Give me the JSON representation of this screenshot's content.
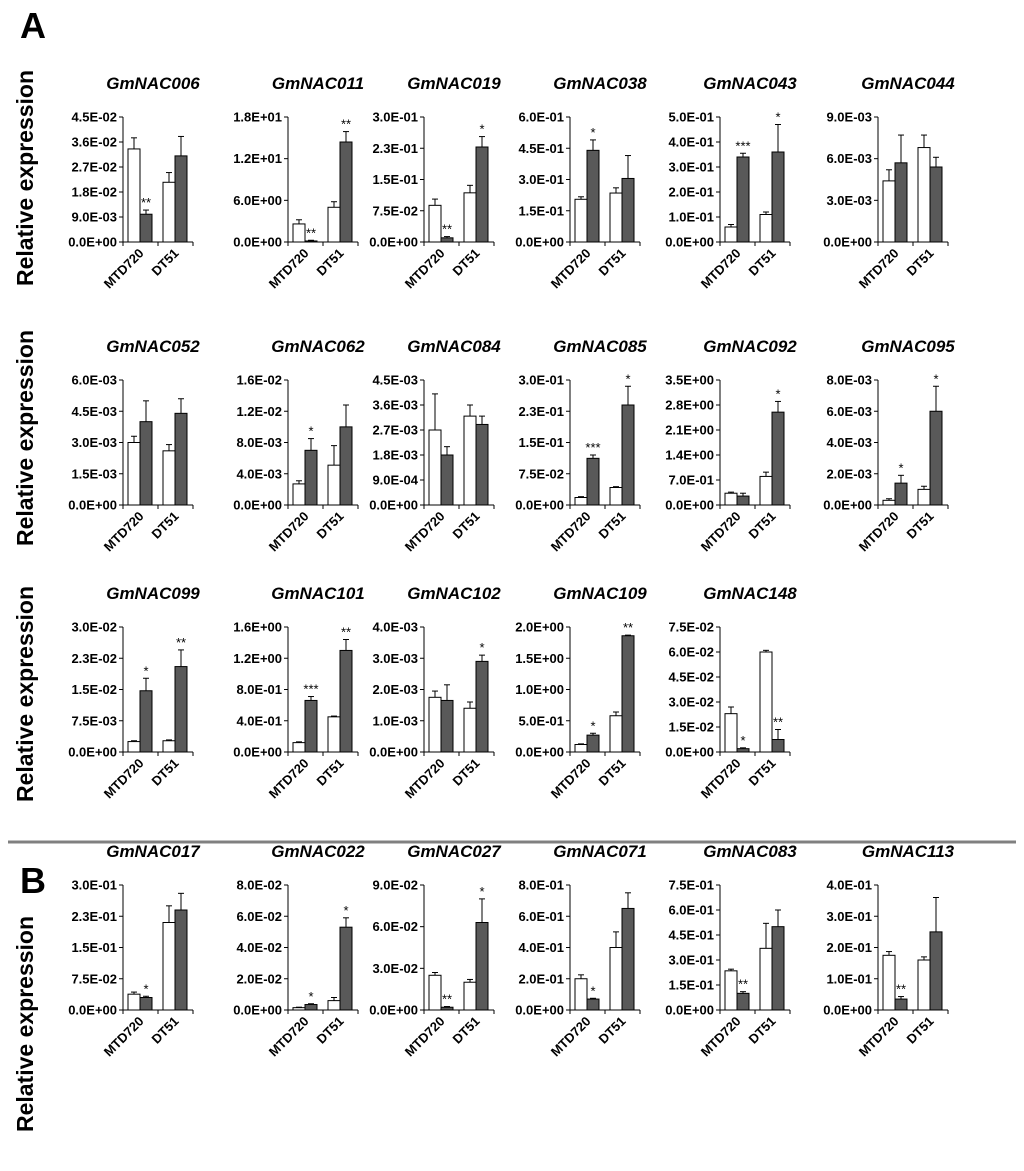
{
  "panels": [
    {
      "label": "A",
      "ylabel": "Relative expression"
    },
    {
      "label": "B",
      "ylabel": "Relative expression"
    }
  ],
  "colors": {
    "open": "#ffffff",
    "filled": "#595959",
    "stroke": "#000000",
    "divider": "#808080"
  },
  "chart_data": [
    {
      "type": "bar",
      "panel": "A",
      "title": "GmNAC006",
      "categories": [
        "MTD720",
        "DT51"
      ],
      "ticks": [
        "0.0E+00",
        "9.0E-03",
        "1.8E-02",
        "2.7E-02",
        "3.6E-02",
        "4.5E-02"
      ],
      "ylim": [
        0,
        0.045
      ],
      "series": [
        {
          "name": "open",
          "values": [
            0.0335,
            0.0215
          ],
          "errors": [
            0.004,
            0.0035
          ],
          "sig": [
            "",
            ""
          ]
        },
        {
          "name": "filled",
          "values": [
            0.01,
            0.031
          ],
          "errors": [
            0.0015,
            0.007
          ],
          "sig": [
            "**",
            ""
          ]
        }
      ]
    },
    {
      "type": "bar",
      "panel": "A",
      "title": "GmNAC011",
      "categories": [
        "MTD720",
        "DT51"
      ],
      "ticks": [
        "0.0E+00",
        "6.0E+00",
        "1.2E+01",
        "1.8E+01"
      ],
      "ylim": [
        0,
        18
      ],
      "series": [
        {
          "name": "open",
          "values": [
            2.6,
            5.0
          ],
          "errors": [
            0.6,
            0.8
          ],
          "sig": [
            "",
            ""
          ]
        },
        {
          "name": "filled",
          "values": [
            0.15,
            14.4
          ],
          "errors": [
            0.1,
            1.5
          ],
          "sig": [
            "**",
            "**"
          ]
        }
      ]
    },
    {
      "type": "bar",
      "panel": "A",
      "title": "GmNAC019",
      "categories": [
        "MTD720",
        "DT51"
      ],
      "ticks": [
        "0.0E+00",
        "7.5E-02",
        "1.5E-01",
        "2.3E-01",
        "3.0E-01"
      ],
      "ylim": [
        0,
        0.3
      ],
      "series": [
        {
          "name": "open",
          "values": [
            0.088,
            0.118
          ],
          "errors": [
            0.015,
            0.018
          ],
          "sig": [
            "",
            ""
          ]
        },
        {
          "name": "filled",
          "values": [
            0.01,
            0.228
          ],
          "errors": [
            0.003,
            0.025
          ],
          "sig": [
            "**",
            "*"
          ]
        }
      ]
    },
    {
      "type": "bar",
      "panel": "A",
      "title": "GmNAC038",
      "categories": [
        "MTD720",
        "DT51"
      ],
      "ticks": [
        "0.0E+00",
        "1.5E-01",
        "3.0E-01",
        "4.5E-01",
        "6.0E-01"
      ],
      "ylim": [
        0,
        0.6
      ],
      "series": [
        {
          "name": "open",
          "values": [
            0.205,
            0.235
          ],
          "errors": [
            0.012,
            0.025
          ],
          "sig": [
            "",
            ""
          ]
        },
        {
          "name": "filled",
          "values": [
            0.44,
            0.305
          ],
          "errors": [
            0.05,
            0.11
          ],
          "sig": [
            "*",
            ""
          ]
        }
      ]
    },
    {
      "type": "bar",
      "panel": "A",
      "title": "GmNAC043",
      "categories": [
        "MTD720",
        "DT51"
      ],
      "ticks": [
        "0.0E+00",
        "1.0E-01",
        "2.0E-01",
        "3.0E-01",
        "4.0E-01",
        "5.0E-01"
      ],
      "ylim": [
        0,
        0.5
      ],
      "series": [
        {
          "name": "open",
          "values": [
            0.06,
            0.11
          ],
          "errors": [
            0.01,
            0.01
          ],
          "sig": [
            "",
            ""
          ]
        },
        {
          "name": "filled",
          "values": [
            0.34,
            0.36
          ],
          "errors": [
            0.015,
            0.11
          ],
          "sig": [
            "***",
            "*"
          ]
        }
      ]
    },
    {
      "type": "bar",
      "panel": "A",
      "title": "GmNAC044",
      "categories": [
        "MTD720",
        "DT51"
      ],
      "ticks": [
        "0.0E+00",
        "3.0E-03",
        "6.0E-03",
        "9.0E-03"
      ],
      "ylim": [
        0,
        0.009
      ],
      "series": [
        {
          "name": "open",
          "values": [
            0.0044,
            0.0068
          ],
          "errors": [
            0.0008,
            0.0009
          ],
          "sig": [
            "",
            ""
          ]
        },
        {
          "name": "filled",
          "values": [
            0.0057,
            0.0054
          ],
          "errors": [
            0.002,
            0.0007
          ],
          "sig": [
            "",
            ""
          ]
        }
      ]
    },
    {
      "type": "bar",
      "panel": "A",
      "title": "GmNAC052",
      "categories": [
        "MTD720",
        "DT51"
      ],
      "ticks": [
        "0.0E+00",
        "1.5E-03",
        "3.0E-03",
        "4.5E-03",
        "6.0E-03"
      ],
      "ylim": [
        0,
        0.006
      ],
      "series": [
        {
          "name": "open",
          "values": [
            0.003,
            0.0026
          ],
          "errors": [
            0.0003,
            0.0003
          ],
          "sig": [
            "",
            ""
          ]
        },
        {
          "name": "filled",
          "values": [
            0.004,
            0.0044
          ],
          "errors": [
            0.001,
            0.0007
          ],
          "sig": [
            "",
            ""
          ]
        }
      ]
    },
    {
      "type": "bar",
      "panel": "A",
      "title": "GmNAC062",
      "categories": [
        "MTD720",
        "DT51"
      ],
      "ticks": [
        "0.0E+00",
        "4.0E-03",
        "8.0E-03",
        "1.2E-02",
        "1.6E-02"
      ],
      "ylim": [
        0,
        0.016
      ],
      "series": [
        {
          "name": "open",
          "values": [
            0.0027,
            0.0051
          ],
          "errors": [
            0.0004,
            0.0025
          ],
          "sig": [
            "",
            ""
          ]
        },
        {
          "name": "filled",
          "values": [
            0.007,
            0.01
          ],
          "errors": [
            0.0015,
            0.0028
          ],
          "sig": [
            "*",
            ""
          ]
        }
      ]
    },
    {
      "type": "bar",
      "panel": "A",
      "title": "GmNAC084",
      "categories": [
        "MTD720",
        "DT51"
      ],
      "ticks": [
        "0.0E+00",
        "9.0E-04",
        "1.8E-03",
        "2.7E-03",
        "3.6E-03",
        "4.5E-03"
      ],
      "ylim": [
        0,
        0.0045
      ],
      "series": [
        {
          "name": "open",
          "values": [
            0.0027,
            0.0032
          ],
          "errors": [
            0.0013,
            0.0004
          ],
          "sig": [
            "",
            ""
          ]
        },
        {
          "name": "filled",
          "values": [
            0.0018,
            0.0029
          ],
          "errors": [
            0.0003,
            0.0003
          ],
          "sig": [
            "",
            ""
          ]
        }
      ]
    },
    {
      "type": "bar",
      "panel": "A",
      "title": "GmNAC085",
      "categories": [
        "MTD720",
        "DT51"
      ],
      "ticks": [
        "0.0E+00",
        "7.5E-02",
        "1.5E-01",
        "2.3E-01",
        "3.0E-01"
      ],
      "ylim": [
        0,
        0.3
      ],
      "series": [
        {
          "name": "open",
          "values": [
            0.018,
            0.042
          ],
          "errors": [
            0.002,
            0.002
          ],
          "sig": [
            "",
            ""
          ]
        },
        {
          "name": "filled",
          "values": [
            0.112,
            0.24
          ],
          "errors": [
            0.008,
            0.045
          ],
          "sig": [
            "***",
            "*"
          ]
        }
      ]
    },
    {
      "type": "bar",
      "panel": "A",
      "title": "GmNAC092",
      "categories": [
        "MTD720",
        "DT51"
      ],
      "ticks": [
        "0.0E+00",
        "7.0E-01",
        "1.4E+00",
        "2.1E+00",
        "2.8E+00",
        "3.5E+00"
      ],
      "ylim": [
        0,
        3.5
      ],
      "series": [
        {
          "name": "open",
          "values": [
            0.33,
            0.8
          ],
          "errors": [
            0.03,
            0.12
          ],
          "sig": [
            "",
            ""
          ]
        },
        {
          "name": "filled",
          "values": [
            0.25,
            2.6
          ],
          "errors": [
            0.08,
            0.3
          ],
          "sig": [
            "",
            "*"
          ]
        }
      ]
    },
    {
      "type": "bar",
      "panel": "A",
      "title": "GmNAC095",
      "categories": [
        "MTD720",
        "DT51"
      ],
      "ticks": [
        "0.0E+00",
        "2.0E-03",
        "4.0E-03",
        "6.0E-03",
        "8.0E-03"
      ],
      "ylim": [
        0,
        0.008
      ],
      "series": [
        {
          "name": "open",
          "values": [
            0.0003,
            0.001
          ],
          "errors": [
            0.0001,
            0.0002
          ],
          "sig": [
            "",
            ""
          ]
        },
        {
          "name": "filled",
          "values": [
            0.0014,
            0.006
          ],
          "errors": [
            0.0005,
            0.0016
          ],
          "sig": [
            "*",
            "*"
          ]
        }
      ]
    },
    {
      "type": "bar",
      "panel": "A",
      "title": "GmNAC099",
      "categories": [
        "MTD720",
        "DT51"
      ],
      "ticks": [
        "0.0E+00",
        "7.5E-03",
        "1.5E-02",
        "2.3E-02",
        "3.0E-02"
      ],
      "ylim": [
        0,
        0.03
      ],
      "series": [
        {
          "name": "open",
          "values": [
            0.0025,
            0.0027
          ],
          "errors": [
            0.0002,
            0.0002
          ],
          "sig": [
            "",
            ""
          ]
        },
        {
          "name": "filled",
          "values": [
            0.0147,
            0.0205
          ],
          "errors": [
            0.003,
            0.004
          ],
          "sig": [
            "*",
            "**"
          ]
        }
      ]
    },
    {
      "type": "bar",
      "panel": "A",
      "title": "GmNAC101",
      "categories": [
        "MTD720",
        "DT51"
      ],
      "ticks": [
        "0.0E+00",
        "4.0E-01",
        "8.0E-01",
        "1.2E+00",
        "1.6E+00"
      ],
      "ylim": [
        0,
        1.6
      ],
      "series": [
        {
          "name": "open",
          "values": [
            0.12,
            0.45
          ],
          "errors": [
            0.01,
            0.01
          ],
          "sig": [
            "",
            ""
          ]
        },
        {
          "name": "filled",
          "values": [
            0.66,
            1.3
          ],
          "errors": [
            0.05,
            0.14
          ],
          "sig": [
            "***",
            "**"
          ]
        }
      ]
    },
    {
      "type": "bar",
      "panel": "A",
      "title": "GmNAC102",
      "categories": [
        "MTD720",
        "DT51"
      ],
      "ticks": [
        "0.0E+00",
        "1.0E-03",
        "2.0E-03",
        "3.0E-03",
        "4.0E-03"
      ],
      "ylim": [
        0,
        0.004
      ],
      "series": [
        {
          "name": "open",
          "values": [
            0.00175,
            0.0014
          ],
          "errors": [
            0.0002,
            0.0002
          ],
          "sig": [
            "",
            ""
          ]
        },
        {
          "name": "filled",
          "values": [
            0.00165,
            0.0029
          ],
          "errors": [
            0.0005,
            0.0002
          ],
          "sig": [
            "",
            "*"
          ]
        }
      ]
    },
    {
      "type": "bar",
      "panel": "A",
      "title": "GmNAC109",
      "categories": [
        "MTD720",
        "DT51"
      ],
      "ticks": [
        "0.0E+00",
        "5.0E-01",
        "1.0E+00",
        "1.5E+00",
        "2.0E+00"
      ],
      "ylim": [
        0,
        2.0
      ],
      "series": [
        {
          "name": "open",
          "values": [
            0.12,
            0.58
          ],
          "errors": [
            0.01,
            0.06
          ],
          "sig": [
            "",
            ""
          ]
        },
        {
          "name": "filled",
          "values": [
            0.27,
            1.86
          ],
          "errors": [
            0.03,
            0.01
          ],
          "sig": [
            "*",
            "**"
          ]
        }
      ]
    },
    {
      "type": "bar",
      "panel": "A",
      "title": "GmNAC148",
      "categories": [
        "MTD720",
        "DT51"
      ],
      "ticks": [
        "0.0E+00",
        "1.5E-02",
        "3.0E-02",
        "4.5E-02",
        "6.0E-02",
        "7.5E-02"
      ],
      "ylim": [
        0,
        0.075
      ],
      "series": [
        {
          "name": "open",
          "values": [
            0.023,
            0.06
          ],
          "errors": [
            0.004,
            0.001
          ],
          "sig": [
            "",
            ""
          ]
        },
        {
          "name": "filled",
          "values": [
            0.002,
            0.0075
          ],
          "errors": [
            0.0005,
            0.006
          ],
          "sig": [
            "*",
            "**"
          ]
        }
      ]
    },
    {
      "type": "bar",
      "panel": "B",
      "title": "GmNAC017",
      "categories": [
        "MTD720",
        "DT51"
      ],
      "ticks": [
        "0.0E+00",
        "7.5E-02",
        "1.5E-01",
        "2.3E-01",
        "3.0E-01"
      ],
      "ylim": [
        0,
        0.3
      ],
      "series": [
        {
          "name": "open",
          "values": [
            0.038,
            0.21
          ],
          "errors": [
            0.005,
            0.04
          ],
          "sig": [
            "",
            ""
          ]
        },
        {
          "name": "filled",
          "values": [
            0.03,
            0.24
          ],
          "errors": [
            0.003,
            0.04
          ],
          "sig": [
            "*",
            ""
          ]
        }
      ]
    },
    {
      "type": "bar",
      "panel": "B",
      "title": "GmNAC022",
      "categories": [
        "MTD720",
        "DT51"
      ],
      "ticks": [
        "0.0E+00",
        "2.0E-02",
        "4.0E-02",
        "6.0E-02",
        "8.0E-02"
      ],
      "ylim": [
        0,
        0.08
      ],
      "series": [
        {
          "name": "open",
          "values": [
            0.0015,
            0.006
          ],
          "errors": [
            0.0003,
            0.002
          ],
          "sig": [
            "",
            ""
          ]
        },
        {
          "name": "filled",
          "values": [
            0.0035,
            0.053
          ],
          "errors": [
            0.0005,
            0.006
          ],
          "sig": [
            "*",
            "*"
          ]
        }
      ]
    },
    {
      "type": "bar",
      "panel": "B",
      "title": "GmNAC027",
      "categories": [
        "MTD720",
        "DT51"
      ],
      "ticks": [
        "0.0E+00",
        "3.0E-02",
        "6.0E-02",
        "9.0E-02"
      ],
      "ylim": [
        0,
        0.09
      ],
      "series": [
        {
          "name": "open",
          "values": [
            0.025,
            0.02
          ],
          "errors": [
            0.002,
            0.002
          ],
          "sig": [
            "",
            ""
          ]
        },
        {
          "name": "filled",
          "values": [
            0.002,
            0.063
          ],
          "errors": [
            0.0005,
            0.017
          ],
          "sig": [
            "**",
            "*"
          ]
        }
      ]
    },
    {
      "type": "bar",
      "panel": "B",
      "title": "GmNAC071",
      "categories": [
        "MTD720",
        "DT51"
      ],
      "ticks": [
        "0.0E+00",
        "2.0E-01",
        "4.0E-01",
        "6.0E-01",
        "8.0E-01"
      ],
      "ylim": [
        0,
        0.8
      ],
      "series": [
        {
          "name": "open",
          "values": [
            0.2,
            0.4
          ],
          "errors": [
            0.025,
            0.1
          ],
          "sig": [
            "",
            ""
          ]
        },
        {
          "name": "filled",
          "values": [
            0.07,
            0.65
          ],
          "errors": [
            0.005,
            0.1
          ],
          "sig": [
            "*",
            ""
          ]
        }
      ]
    },
    {
      "type": "bar",
      "panel": "B",
      "title": "GmNAC083",
      "categories": [
        "MTD720",
        "DT51"
      ],
      "ticks": [
        "0.0E+00",
        "1.5E-01",
        "3.0E-01",
        "4.5E-01",
        "6.0E-01",
        "7.5E-01"
      ],
      "ylim": [
        0,
        0.75
      ],
      "series": [
        {
          "name": "open",
          "values": [
            0.235,
            0.37
          ],
          "errors": [
            0.01,
            0.15
          ],
          "sig": [
            "",
            ""
          ]
        },
        {
          "name": "filled",
          "values": [
            0.1,
            0.5
          ],
          "errors": [
            0.01,
            0.1
          ],
          "sig": [
            "**",
            ""
          ]
        }
      ]
    },
    {
      "type": "bar",
      "panel": "B",
      "title": "GmNAC113",
      "categories": [
        "MTD720",
        "DT51"
      ],
      "ticks": [
        "0.0E+00",
        "1.0E-01",
        "2.0E-01",
        "3.0E-01",
        "4.0E-01"
      ],
      "ylim": [
        0,
        0.4
      ],
      "series": [
        {
          "name": "open",
          "values": [
            0.175,
            0.16
          ],
          "errors": [
            0.012,
            0.01
          ],
          "sig": [
            "",
            ""
          ]
        },
        {
          "name": "filled",
          "values": [
            0.035,
            0.25
          ],
          "errors": [
            0.008,
            0.11
          ],
          "sig": [
            "**",
            ""
          ]
        }
      ]
    }
  ]
}
